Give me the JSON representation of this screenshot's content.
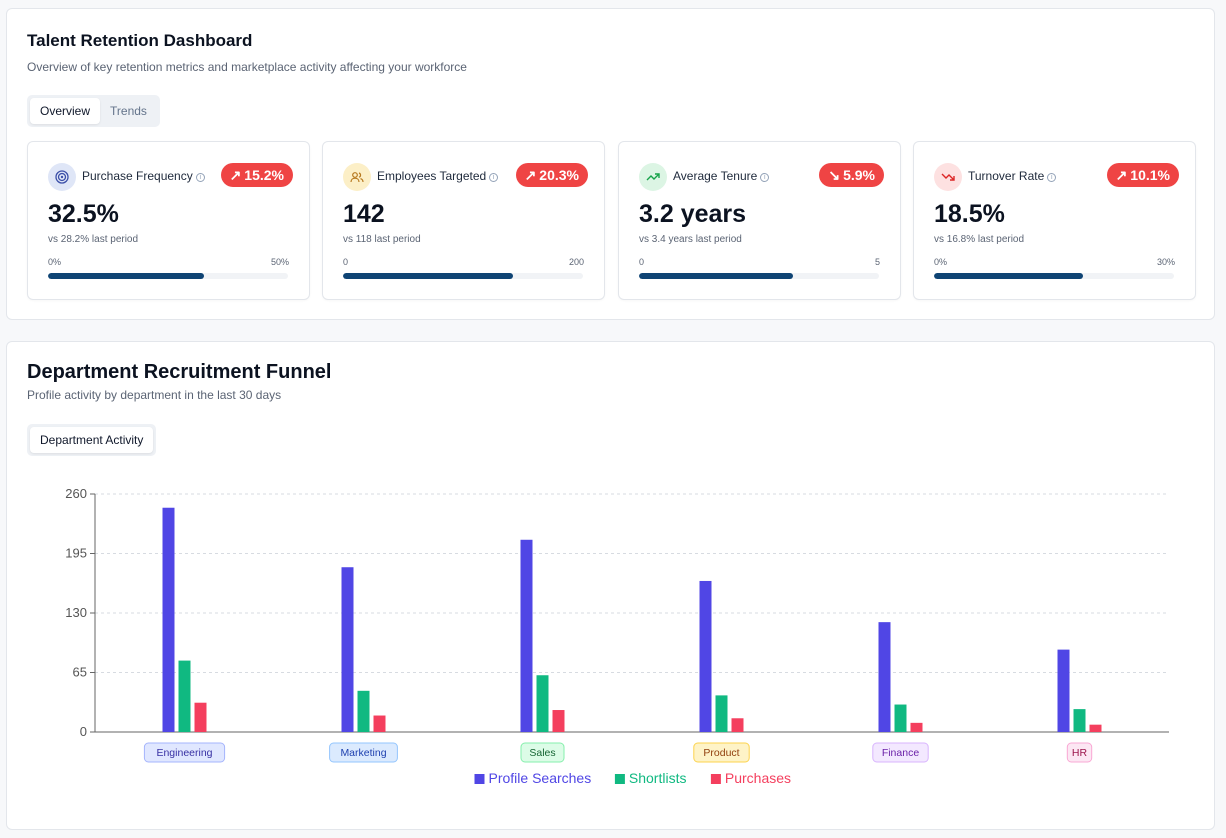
{
  "header": {
    "title": "Talent Retention Dashboard",
    "subtitle": "Overview of key retention metrics and marketplace activity affecting your workforce",
    "tabs": [
      {
        "label": "Overview",
        "active": true
      },
      {
        "label": "Trends",
        "active": false
      }
    ]
  },
  "metrics": [
    {
      "label": "Purchase Frequency",
      "icon": "target-icon",
      "icon_bg": "#dfe6f7",
      "icon_color": "#3b4fa8",
      "change": "15.2%",
      "direction": "up",
      "value": "32.5%",
      "compare": "vs 28.2% last period",
      "min_label": "0%",
      "max_label": "50%",
      "progress": 0.65
    },
    {
      "label": "Employees Targeted",
      "icon": "users-icon",
      "icon_bg": "#fcefc7",
      "icon_color": "#b7791f",
      "change": "20.3%",
      "direction": "up",
      "value": "142",
      "compare": "vs 118 last period",
      "min_label": "0",
      "max_label": "200",
      "progress": 0.71
    },
    {
      "label": "Average Tenure",
      "icon": "trend-up-icon",
      "icon_bg": "#dcf5e4",
      "icon_color": "#16a34a",
      "change": "5.9%",
      "direction": "down",
      "value": "3.2 years",
      "compare": "vs 3.4 years last period",
      "min_label": "0",
      "max_label": "5",
      "progress": 0.64
    },
    {
      "label": "Turnover Rate",
      "icon": "trend-down-icon",
      "icon_bg": "#fde1e1",
      "icon_color": "#dc2626",
      "change": "10.1%",
      "direction": "up",
      "value": "18.5%",
      "compare": "vs 16.8% last period",
      "min_label": "0%",
      "max_label": "30%",
      "progress": 0.62
    }
  ],
  "funnel": {
    "title": "Department Recruitment Funnel",
    "subtitle": "Profile activity by department in the last 30 days",
    "tab_label": "Department Activity"
  },
  "colors": {
    "profile_searches": "#5046e5",
    "shortlists": "#10b981",
    "purchases": "#f43f5e",
    "badge": "#ef4444",
    "progress": "#0f4474"
  },
  "chart_data": {
    "type": "bar",
    "categories": [
      "Engineering",
      "Marketing",
      "Sales",
      "Product",
      "Finance",
      "HR"
    ],
    "category_colors": [
      {
        "bg": "#e0e7ff",
        "border": "#a5b4fc",
        "text": "#3730a3"
      },
      {
        "bg": "#dbeafe",
        "border": "#93c5fd",
        "text": "#1e40af"
      },
      {
        "bg": "#dcfce7",
        "border": "#86efac",
        "text": "#166534"
      },
      {
        "bg": "#fef3c7",
        "border": "#fcd34d",
        "text": "#92400e"
      },
      {
        "bg": "#f3e8ff",
        "border": "#d8b4fe",
        "text": "#6b21a8"
      },
      {
        "bg": "#fce7f3",
        "border": "#f9a8d4",
        "text": "#9d174d"
      }
    ],
    "series": [
      {
        "name": "Profile Searches",
        "values": [
          245,
          180,
          210,
          165,
          120,
          90
        ]
      },
      {
        "name": "Shortlists",
        "values": [
          78,
          45,
          62,
          40,
          30,
          25
        ]
      },
      {
        "name": "Purchases",
        "values": [
          32,
          18,
          24,
          15,
          10,
          8
        ]
      }
    ],
    "yticks": [
      0,
      65,
      130,
      195,
      260
    ],
    "ylim": [
      0,
      260
    ],
    "grid": true,
    "legend": "bottom-center"
  }
}
